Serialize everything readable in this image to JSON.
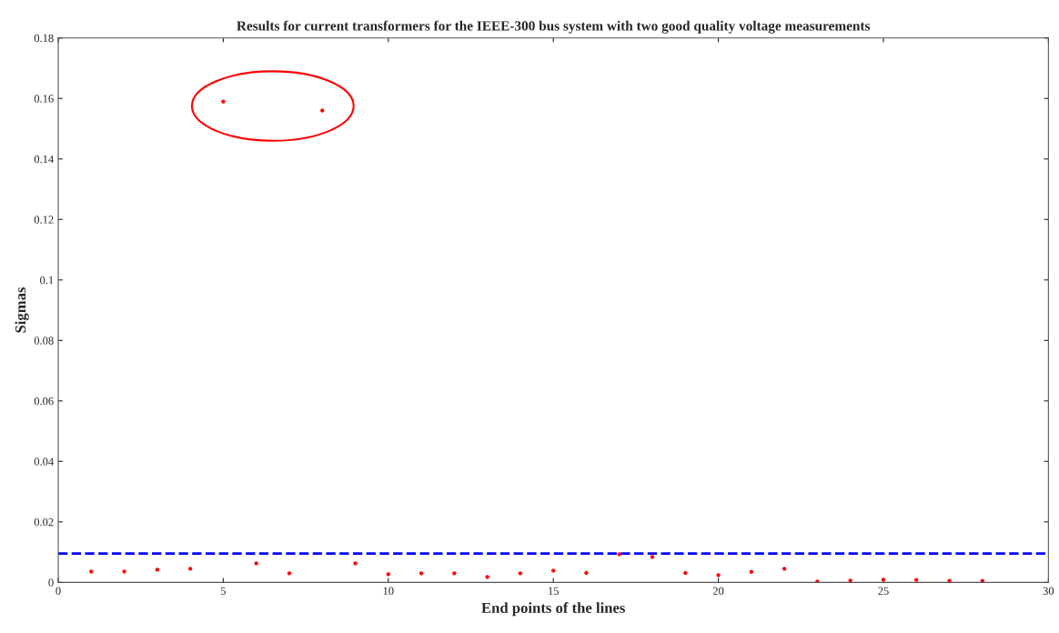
{
  "chart_data": {
    "type": "scatter",
    "title": "Results for current transformers for the IEEE-300 bus system with two good quality voltage measurements",
    "xlabel": "End points of the lines",
    "ylabel": "Sigmas",
    "x": [
      1,
      2,
      3,
      4,
      5,
      6,
      7,
      8,
      9,
      10,
      11,
      12,
      13,
      14,
      15,
      16,
      17,
      18,
      19,
      20,
      21,
      22,
      23,
      24,
      25,
      26,
      27,
      28
    ],
    "series": [
      {
        "color": "#ff0000",
        "values": [
          0.0036,
          0.0036,
          0.0042,
          0.0045,
          0.159,
          0.0063,
          0.003,
          0.156,
          0.0063,
          0.0027,
          0.003,
          0.003,
          0.0018,
          0.003,
          0.0039,
          0.0031,
          0.0093,
          0.0084,
          0.0031,
          0.0024,
          0.0035,
          0.0045,
          0.0003,
          0.0006,
          0.0009,
          0.0008,
          0.0005,
          0.0005
        ]
      }
    ],
    "marker": "circle",
    "xlim": [
      0,
      30
    ],
    "xticks": [
      0,
      5,
      10,
      15,
      20,
      25,
      30
    ],
    "ylim": [
      0,
      0.18
    ],
    "yticks": [
      0,
      0.02,
      0.04,
      0.06,
      0.08,
      0.1,
      0.12,
      0.14,
      0.16,
      0.18
    ],
    "ref_lines": [
      {
        "axis": "y",
        "value": 0.0095,
        "color": "#0000ff",
        "line_style": "dashed"
      }
    ],
    "grid": false,
    "legend": false
  }
}
